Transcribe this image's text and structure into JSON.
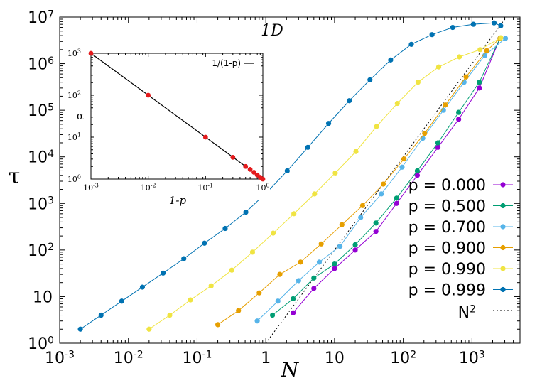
{
  "chart_data": [
    {
      "type": "line",
      "title": "1D",
      "xlabel": "N",
      "ylabel": "τ",
      "xscale": "log",
      "yscale": "log",
      "xlim": [
        0.001,
        5000
      ],
      "ylim": [
        1,
        10000000
      ],
      "x_ticks": [
        {
          "value": 0.001,
          "base": "10",
          "exp": "-3"
        },
        {
          "value": 0.01,
          "base": "10",
          "exp": "-2"
        },
        {
          "value": 0.1,
          "base": "10",
          "exp": "-1"
        },
        {
          "value": 1,
          "base": "1",
          "exp": ""
        },
        {
          "value": 10,
          "base": "10",
          "exp": ""
        },
        {
          "value": 100,
          "base": "10",
          "exp": "2"
        },
        {
          "value": 1000,
          "base": "10",
          "exp": "3"
        }
      ],
      "y_ticks": [
        {
          "value": 1,
          "base": "10",
          "exp": "0"
        },
        {
          "value": 10,
          "base": "10",
          "exp": ""
        },
        {
          "value": 100,
          "base": "10",
          "exp": "2"
        },
        {
          "value": 1000,
          "base": "10",
          "exp": "3"
        },
        {
          "value": 10000,
          "base": "10",
          "exp": "4"
        },
        {
          "value": 100000,
          "base": "10",
          "exp": "5"
        },
        {
          "value": 1000000,
          "base": "10",
          "exp": "6"
        },
        {
          "value": 10000000,
          "base": "10",
          "exp": "7"
        }
      ],
      "legend_position": "bottom-right",
      "series": [
        {
          "name": "p = 0.000",
          "color": "#9400d3",
          "x": [
            2.5,
            5,
            10,
            20,
            40,
            80,
            160,
            320,
            640,
            1280,
            2560
          ],
          "y": [
            4.5,
            15,
            40,
            100,
            250,
            1000,
            4000,
            16000,
            64000,
            300000,
            3500000
          ]
        },
        {
          "name": "p = 0.500",
          "color": "#009e73",
          "x": [
            1.25,
            2.5,
            5,
            10,
            20,
            40,
            80,
            160,
            320,
            640,
            1280,
            2560
          ],
          "y": [
            4,
            9,
            25,
            50,
            130,
            380,
            1300,
            5000,
            20000,
            90000,
            400000,
            3500000
          ]
        },
        {
          "name": "p = 0.700",
          "color": "#56b4e9",
          "x": [
            0.75,
            1.5,
            3,
            6,
            12,
            24,
            48,
            96,
            192,
            384,
            768,
            1536,
            3072
          ],
          "y": [
            3,
            8,
            22,
            55,
            120,
            500,
            1600,
            6000,
            25000,
            100000,
            400000,
            1500000,
            3500000
          ]
        },
        {
          "name": "p = 0.900",
          "color": "#e69f00",
          "x": [
            0.2,
            0.4,
            0.8,
            1.6,
            3.2,
            6.4,
            12.8,
            25.6,
            51.2,
            102.4,
            204.8,
            409.6,
            819.2,
            1638.4,
            2560
          ],
          "y": [
            2.5,
            5,
            12,
            30,
            55,
            135,
            350,
            900,
            2600,
            9000,
            32000,
            130000,
            520000,
            1900000,
            3500000
          ]
        },
        {
          "name": "p = 0.990",
          "color": "#f0e442",
          "x": [
            0.02,
            0.04,
            0.08,
            0.16,
            0.32,
            0.64,
            1.28,
            2.56,
            5.12,
            10.24,
            20.48,
            40.96,
            81.92,
            163.84,
            327.68,
            655.36,
            1310.72,
            2621.44
          ],
          "y": [
            2,
            4,
            8.5,
            17,
            37,
            90,
            230,
            600,
            1600,
            4500,
            13000,
            45000,
            140000,
            400000,
            850000,
            1400000,
            2000000,
            3600000
          ]
        },
        {
          "name": "p = 0.999",
          "color": "#0072b2",
          "x": [
            0.002,
            0.004,
            0.008,
            0.016,
            0.032,
            0.064,
            0.128,
            0.256,
            0.512,
            1.024,
            2.048,
            4.096,
            8.192,
            16.384,
            32.768,
            65.536,
            131.072,
            262.144,
            524.288,
            1048.576,
            2097.152,
            2621.44
          ],
          "y": [
            2,
            4,
            8,
            16,
            32,
            65,
            140,
            290,
            650,
            1700,
            5000,
            16000,
            52000,
            160000,
            450000,
            1200000,
            2600000,
            4200000,
            6000000,
            7000000,
            7500000,
            6500000
          ]
        }
      ],
      "reference_line": {
        "name": "N²",
        "label_base": "N",
        "label_exp": "2",
        "exponent": 2,
        "x_range": [
          1,
          5000
        ],
        "color": "#000000",
        "dash": "dotted"
      }
    },
    {
      "type": "line",
      "xlabel": "1-p",
      "ylabel": "α",
      "xscale": "log",
      "yscale": "log",
      "xlim": [
        0.001,
        1
      ],
      "ylim": [
        1,
        1000
      ],
      "x_ticks": [
        {
          "value": 0.001,
          "base": "10",
          "exp": "-3"
        },
        {
          "value": 0.01,
          "base": "10",
          "exp": "-2"
        },
        {
          "value": 0.1,
          "base": "10",
          "exp": "-1"
        },
        {
          "value": 1,
          "base": "10",
          "exp": "0"
        }
      ],
      "y_ticks": [
        {
          "value": 1,
          "base": "10",
          "exp": "0"
        },
        {
          "value": 10,
          "base": "10",
          "exp": "1"
        },
        {
          "value": 100,
          "base": "10",
          "exp": "2"
        },
        {
          "value": 1000,
          "base": "10",
          "exp": "3"
        }
      ],
      "legend_position": "top-right",
      "points": {
        "color": "#e41a1c",
        "x": [
          0.001,
          0.01,
          0.1,
          0.3,
          0.5,
          0.6,
          0.7,
          0.8,
          0.9,
          1.0
        ],
        "y": [
          1000,
          100,
          10,
          3.3,
          2,
          1.7,
          1.45,
          1.25,
          1.1,
          1
        ]
      },
      "fit_line": {
        "name": "1/(1-p)",
        "color": "#000000"
      }
    }
  ]
}
